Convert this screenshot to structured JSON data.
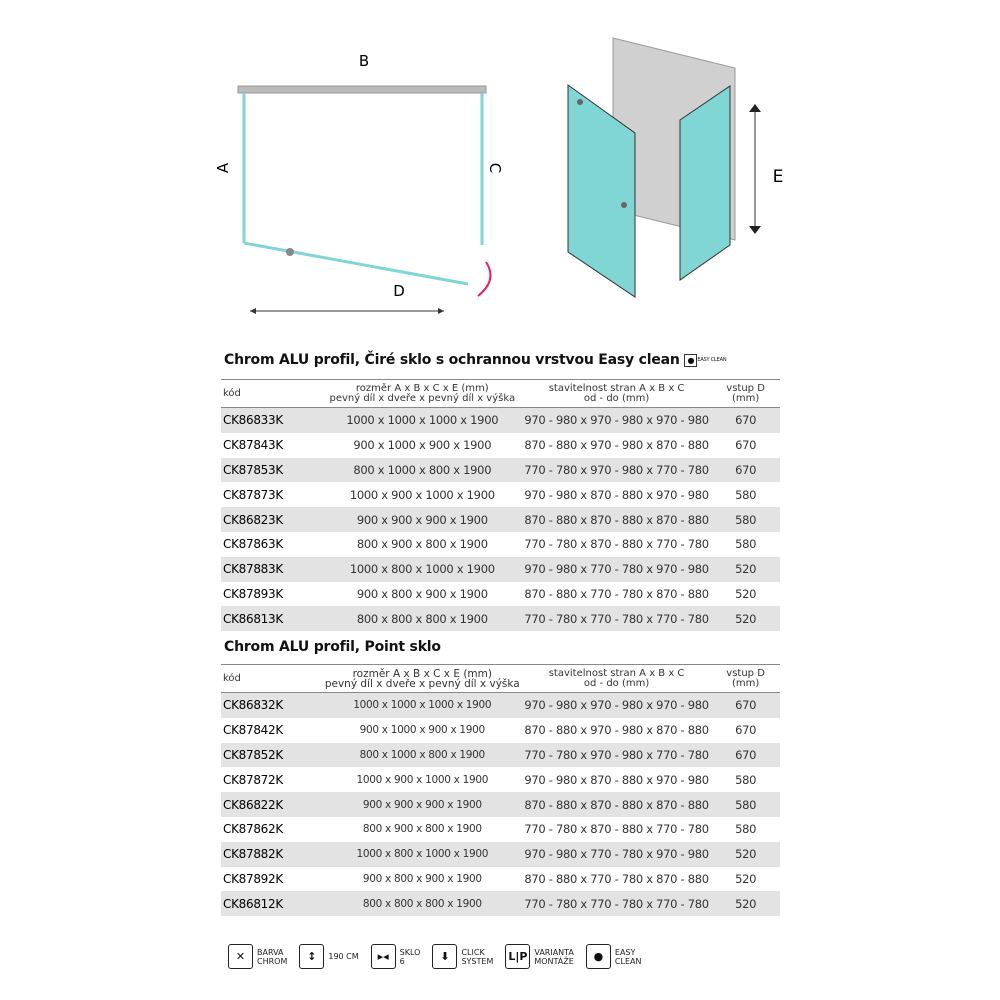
{
  "diagram": {
    "labels": {
      "a": "A",
      "b": "B",
      "c": "C",
      "d": "D",
      "e": "E"
    },
    "glass_color": "#7fd6d4",
    "arrow_color": "#e0245e"
  },
  "headers": {
    "code": "kód",
    "size_l1": "rozměr A x B x C x E (mm)",
    "size_l2": "pevný díl x dveře x pevný díl x výška",
    "adj_l1": "stavitelnost stran A x B x C",
    "adj_l2": "od - do (mm)",
    "entry": "vstup D (mm)"
  },
  "sections": [
    {
      "title": "Chrom ALU profil, Čiré sklo s ochrannou vrstvou Easy clean",
      "badge": "EASY CLEAN",
      "rows": [
        [
          "CK86833K",
          "1000 x 1000 x 1000 x 1900",
          "970 - 980 x 970 - 980 x 970 - 980",
          "670"
        ],
        [
          "CK87843K",
          "900 x 1000 x 900 x 1900",
          "870 - 880 x 970 - 980 x 870 - 880",
          "670"
        ],
        [
          "CK87853K",
          "800 x 1000 x 800 x 1900",
          "770 - 780 x 970 - 980 x 770 - 780",
          "670"
        ],
        [
          "CK87873K",
          "1000 x 900 x 1000 x 1900",
          "970 - 980 x 870 - 880 x 970 - 980",
          "580"
        ],
        [
          "CK86823K",
          "900 x 900 x 900 x 1900",
          "870 - 880 x 870 - 880 x 870 - 880",
          "580"
        ],
        [
          "CK87863K",
          "800 x 900 x 800 x 1900",
          "770 - 780 x 870 - 880 x 770 - 780",
          "580"
        ],
        [
          "CK87883K",
          "1000 x 800 x 1000 x 1900",
          "970 - 980 x 770 - 780 x 970 - 980",
          "520"
        ],
        [
          "CK87893K",
          "900 x 800 x 900 x 1900",
          "870 - 880 x 770 - 780 x 870 - 880",
          "520"
        ],
        [
          "CK86813K",
          "800 x 800 x 800 x 1900",
          "770 - 780 x 770 - 780 x 770 - 780",
          "520"
        ]
      ]
    },
    {
      "title": "Chrom ALU profil, Point sklo",
      "rows": [
        [
          "CK86832K",
          "1000 x 1000 x 1000 x 1900",
          "970 - 980 x 970 - 980 x 970 - 980",
          "670"
        ],
        [
          "CK87842K",
          "900 x 1000 x 900 x 1900",
          "870 - 880 x 970 - 980 x 870 - 880",
          "670"
        ],
        [
          "CK87852K",
          "800 x 1000 x 800 x 1900",
          "770 - 780 x 970 - 980 x 770 - 780",
          "670"
        ],
        [
          "CK87872K",
          "1000 x 900 x 1000 x 1900",
          "970 - 980 x 870 - 880 x 970 - 980",
          "580"
        ],
        [
          "CK86822K",
          "900 x 900 x 900 x 1900",
          "870 - 880 x 870 - 880 x 870 - 880",
          "580"
        ],
        [
          "CK87862K",
          "800 x 900 x 800 x 1900",
          "770 - 780 x 870 - 880 x 770 - 780",
          "580"
        ],
        [
          "CK87882K",
          "1000 x 800 x 1000 x 1900",
          "970 - 980 x 770 - 780 x 970 - 980",
          "520"
        ],
        [
          "CK87892K",
          "900 x 800 x 900 x 1900",
          "870 - 880 x 770 - 780 x 870 - 880",
          "520"
        ],
        [
          "CK86812K",
          "800 x 800 x 800 x 1900",
          "770 - 780 x 770 - 780 x 770 - 780",
          "520"
        ]
      ]
    }
  ],
  "legend": [
    {
      "icon": "profile-color-icon",
      "l1": "BARVA",
      "l2": "CHROM"
    },
    {
      "icon": "height-icon",
      "l1": "190 CM",
      "l2": ""
    },
    {
      "icon": "glass-thickness-icon",
      "l1": "SKLO",
      "l2": "6"
    },
    {
      "icon": "click-system-icon",
      "l1": "CLICK",
      "l2": "SYSTEM"
    },
    {
      "icon": "lp-variant-icon",
      "glyph": "L|P",
      "l1": "VARIANTA",
      "l2": "MONTÁŽE"
    },
    {
      "icon": "water-drop-icon",
      "l1": "EASY",
      "l2": "CLEAN"
    }
  ]
}
